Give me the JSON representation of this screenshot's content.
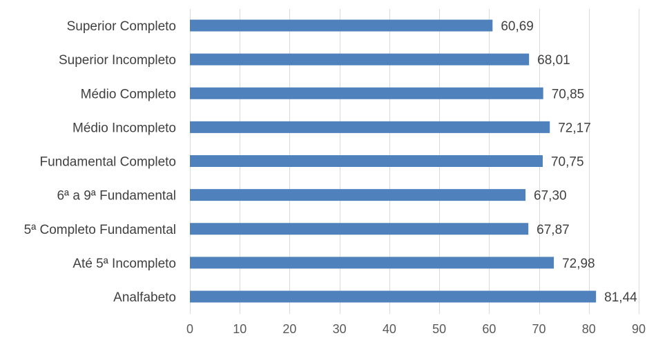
{
  "chart_data": {
    "type": "bar",
    "orientation": "horizontal",
    "title": "",
    "xlabel": "",
    "ylabel": "",
    "categories": [
      "Superior Completo",
      "Superior Incompleto",
      "Médio Completo",
      "Médio Incompleto",
      "Fundamental Completo",
      "6ª a 9ª Fundamental",
      "5ª Completo Fundamental",
      "Até 5ª Incompleto",
      "Analfabeto"
    ],
    "values": [
      60.69,
      68.01,
      70.85,
      72.17,
      70.75,
      67.3,
      67.87,
      72.98,
      81.44
    ],
    "value_labels": [
      "60,69",
      "68,01",
      "70,85",
      "72,17",
      "70,75",
      "67,30",
      "67,87",
      "72,98",
      "81,44"
    ],
    "xlim": [
      0,
      90
    ],
    "x_ticks": [
      0,
      10,
      20,
      30,
      40,
      50,
      60,
      70,
      80,
      90
    ],
    "grid": true,
    "legend": "none",
    "bar_color": "#4f81bd",
    "grid_color": "#d9d9d9",
    "text_color": "#404040"
  }
}
